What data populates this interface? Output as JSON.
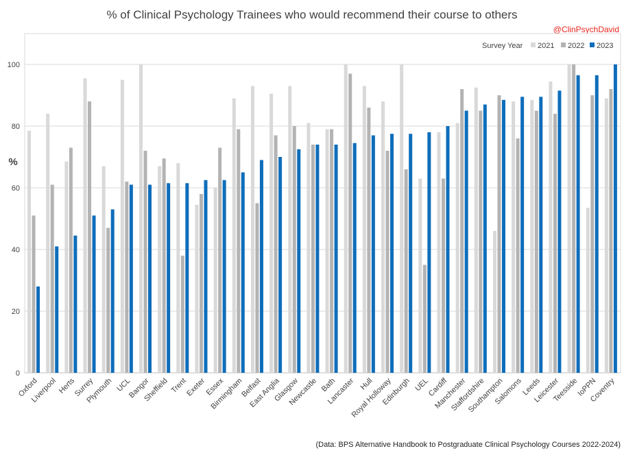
{
  "chart_data": {
    "type": "bar",
    "title": "% of Clinical Psychology Trainees who would recommend their course to others",
    "handle": "@ClinPsychDavid",
    "ylabel": "%",
    "ylim": [
      0,
      110
    ],
    "yticks": [
      0,
      20,
      40,
      60,
      80,
      100
    ],
    "grid": "horizontal",
    "legend_title": "Survey Year",
    "legend_position": "top-right",
    "source": "(Data: BPS Alternative Handbook to Postgraduate Clinical Psychology Courses 2022-2024)",
    "categories": [
      "Oxford",
      "Liverpool",
      "Herts",
      "Surrey",
      "Plymouth",
      "UCL",
      "Bangor",
      "Sheffield",
      "Trent",
      "Exeter",
      "Essex",
      "Birmingham",
      "Belfast",
      "East Anglia",
      "Glasgow",
      "Newcastle",
      "Bath",
      "Lancaster",
      "Hull",
      "Royal Holloway",
      "Edinburgh",
      "UEL",
      "Cardiff",
      "Manchester",
      "Staffordshire",
      "Southampton",
      "Salomons",
      "Leeds",
      "Leicester",
      "Teesside",
      "IoPPN",
      "Coventry"
    ],
    "series": [
      {
        "name": "2021",
        "color": "#d9d9d9",
        "values": [
          78.5,
          84,
          68.5,
          95.5,
          67,
          95,
          100,
          67,
          68,
          54.5,
          60,
          89,
          93,
          90.5,
          93,
          81,
          79,
          100,
          93,
          88,
          100,
          63,
          78,
          81,
          92.5,
          46,
          88,
          88.5,
          94.5,
          100,
          53.5,
          89
        ]
      },
      {
        "name": "2022",
        "color": "#b3b3b3",
        "values": [
          51,
          61,
          73,
          88,
          47,
          62,
          72,
          69.5,
          38,
          58,
          73,
          79,
          55,
          77,
          80,
          74,
          79,
          97,
          86,
          72,
          66,
          35,
          63,
          92,
          85,
          90,
          76,
          85,
          84,
          100,
          90,
          92
        ]
      },
      {
        "name": "2023",
        "color": "#0e6dba",
        "values": [
          28,
          41,
          44.5,
          51,
          53,
          61,
          61,
          61.5,
          61.5,
          62.5,
          62.5,
          65,
          69,
          70,
          72.5,
          74,
          74,
          74.5,
          77,
          77.5,
          77.5,
          78,
          80,
          85,
          87,
          88.5,
          89.5,
          89.5,
          91.5,
          96.5,
          96.5,
          100
        ]
      }
    ]
  }
}
